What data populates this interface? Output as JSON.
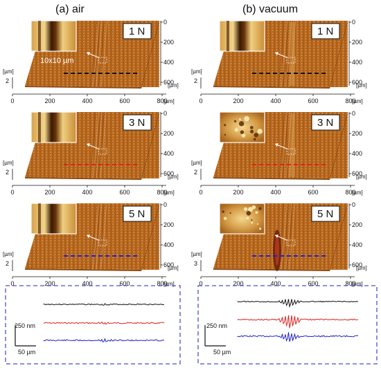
{
  "columns": [
    {
      "title": "(a) air"
    },
    {
      "title": "(b) vacuum"
    }
  ],
  "panels": [
    {
      "col": 0,
      "row": 0,
      "load": "1 N",
      "inset_label": "10x10 µm",
      "z_tick": "2",
      "line_color": "#111111",
      "inset": "groove"
    },
    {
      "col": 0,
      "row": 1,
      "load": "3 N",
      "inset_label": "",
      "z_tick": "2",
      "line_color": "#e02020",
      "inset": "groove"
    },
    {
      "col": 0,
      "row": 2,
      "load": "5 N",
      "inset_label": "",
      "z_tick": "2",
      "line_color": "#2020d0",
      "inset": "groove"
    },
    {
      "col": 1,
      "row": 0,
      "load": "1 N",
      "inset_label": "",
      "z_tick": "2",
      "line_color": "#111111",
      "inset": "groove"
    },
    {
      "col": 1,
      "row": 1,
      "load": "3 N",
      "inset_label": "",
      "z_tick": "2",
      "line_color": "#e02020",
      "inset": "debris"
    },
    {
      "col": 1,
      "row": 2,
      "load": "5 N",
      "inset_label": "",
      "z_tick": "3",
      "line_color": "#2020d0",
      "inset": "debris"
    }
  ],
  "axes": {
    "x_ticks": [
      "0",
      "200",
      "400",
      "600",
      "800"
    ],
    "y_ticks": [
      "0",
      "200",
      "400",
      "600"
    ],
    "x_unit": "[µm]",
    "y_unit": "[µm]",
    "z_unit": "[µm]"
  },
  "profiles_box": {
    "height_scale": "250 nm",
    "width_scale": "50 µm",
    "series_colors": [
      "#111111",
      "#e02020",
      "#2020d0"
    ]
  },
  "colors": {
    "surface": "#b5661c",
    "surface_dark": "#7a3e0c",
    "surface_light": "#dc9a52",
    "dashed_border": "#4a4adc"
  }
}
